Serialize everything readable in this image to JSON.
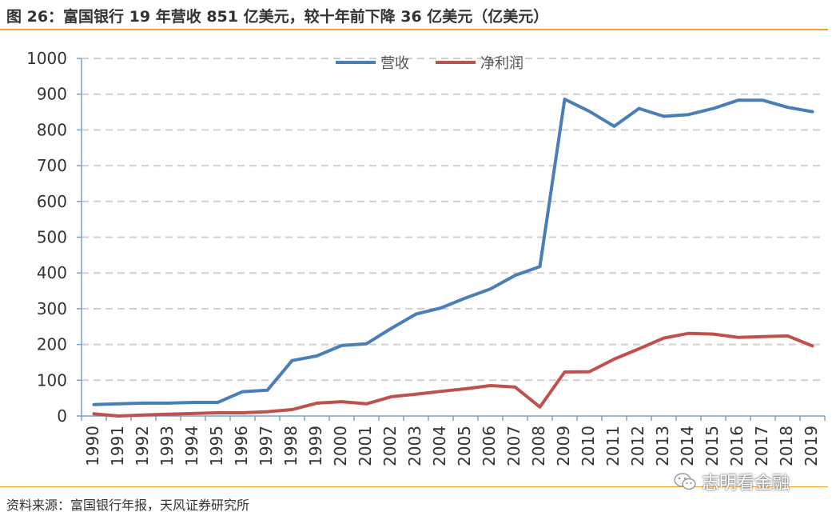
{
  "header": {
    "title": "图 26：富国银行 19 年营收 851 亿美元，较十年前下降 36 亿美元（亿美元）"
  },
  "footer": {
    "source": "资料来源：富国银行年报，天风证券研究所"
  },
  "watermark": {
    "text": "志明看金融"
  },
  "chart_data": {
    "type": "line",
    "title": "",
    "xlabel": "",
    "ylabel": "",
    "ylim": [
      0,
      1000
    ],
    "yticks": [
      "0",
      "100",
      "200",
      "300",
      "400",
      "500",
      "600",
      "700",
      "800",
      "900",
      "1000"
    ],
    "grid": "horizontal dashed",
    "legend": "top-center",
    "categories": [
      "1990",
      "1991",
      "1992",
      "1993",
      "1994",
      "1995",
      "1996",
      "1997",
      "1998",
      "1999",
      "2000",
      "2001",
      "2002",
      "2003",
      "2004",
      "2005",
      "2006",
      "2007",
      "2008",
      "2009",
      "2010",
      "2011",
      "2012",
      "2013",
      "2014",
      "2015",
      "2016",
      "2017",
      "2018",
      "2019"
    ],
    "series": [
      {
        "name": "营收",
        "color": "#4a7eb8",
        "values": [
          32,
          34,
          36,
          36,
          38,
          38,
          68,
          72,
          155,
          168,
          197,
          202,
          245,
          285,
          302,
          330,
          355,
          393,
          418,
          886,
          852,
          810,
          860,
          838,
          843,
          860,
          883,
          883,
          863,
          851
        ]
      },
      {
        "name": "净利润",
        "color": "#c0504d",
        "values": [
          6,
          0,
          3,
          5,
          7,
          9,
          9,
          12,
          18,
          36,
          40,
          34,
          54,
          61,
          69,
          76,
          85,
          81,
          25,
          123,
          124,
          159,
          188,
          218,
          231,
          229,
          220,
          222,
          224,
          196
        ]
      }
    ]
  }
}
